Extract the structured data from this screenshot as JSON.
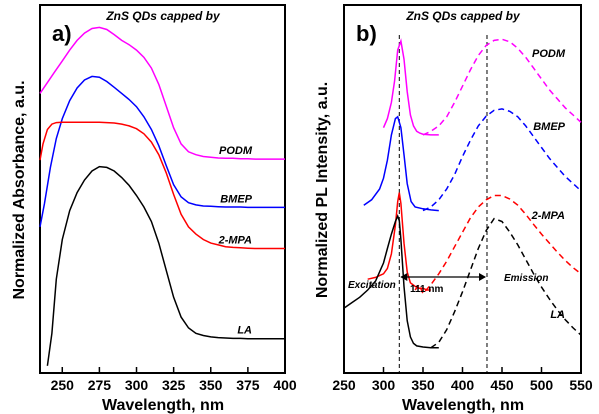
{
  "chart_data": [
    {
      "type": "line",
      "panel_label": "a)",
      "title": "ZnS QDs capped by",
      "xlabel": "Wavelength, nm",
      "ylabel": "Normalized Absorbance, a.u.",
      "xlim": [
        235,
        400
      ],
      "xticks": [
        250,
        275,
        300,
        325,
        350,
        375,
        400
      ],
      "y_ticks_shown": false,
      "series": [
        {
          "name": "PODM",
          "color": "#ff00ff",
          "x": [
            235,
            240,
            245,
            250,
            255,
            260,
            265,
            270,
            275,
            280,
            285,
            290,
            295,
            300,
            305,
            310,
            315,
            320,
            325,
            330,
            335,
            340,
            345,
            350,
            355,
            360,
            365,
            370,
            375,
            380,
            385,
            390,
            395,
            400
          ],
          "y": [
            7.25,
            7.55,
            7.85,
            8.15,
            8.45,
            8.72,
            8.92,
            9.05,
            9.08,
            9.02,
            8.88,
            8.72,
            8.6,
            8.45,
            8.25,
            7.95,
            7.5,
            6.9,
            6.3,
            5.85,
            5.63,
            5.55,
            5.5,
            5.48,
            5.46,
            5.45,
            5.45,
            5.44,
            5.44,
            5.43,
            5.43,
            5.43,
            5.43,
            5.43
          ]
        },
        {
          "name": "BMEP",
          "color": "#0000ff",
          "x": [
            235,
            238,
            242,
            246,
            250,
            255,
            260,
            265,
            270,
            275,
            280,
            285,
            290,
            295,
            300,
            305,
            310,
            315,
            320,
            325,
            330,
            335,
            340,
            345,
            350,
            355,
            360,
            365,
            370,
            375,
            380,
            385,
            390,
            395,
            400
          ],
          "y": [
            3.55,
            4.2,
            5.2,
            6.0,
            6.55,
            7.05,
            7.4,
            7.62,
            7.72,
            7.7,
            7.58,
            7.42,
            7.25,
            7.08,
            6.88,
            6.6,
            6.25,
            5.8,
            5.25,
            4.72,
            4.38,
            4.22,
            4.16,
            4.13,
            4.12,
            4.11,
            4.1,
            4.1,
            4.1,
            4.09,
            4.09,
            4.09,
            4.09,
            4.09,
            4.09
          ]
        },
        {
          "name": "2-MPA",
          "color": "#ff0000",
          "x": [
            235,
            237,
            240,
            243,
            246,
            250,
            255,
            260,
            265,
            270,
            275,
            280,
            285,
            290,
            295,
            300,
            305,
            310,
            315,
            320,
            325,
            330,
            335,
            340,
            345,
            350,
            355,
            360,
            365,
            370,
            375,
            380,
            385,
            390,
            395,
            400
          ],
          "y": [
            5.4,
            5.85,
            6.25,
            6.4,
            6.44,
            6.45,
            6.45,
            6.45,
            6.45,
            6.45,
            6.45,
            6.44,
            6.43,
            6.4,
            6.35,
            6.27,
            6.13,
            5.9,
            5.55,
            5.05,
            4.45,
            3.9,
            3.55,
            3.35,
            3.2,
            3.1,
            3.05,
            3.0,
            2.98,
            2.97,
            2.96,
            2.95,
            2.95,
            2.95,
            2.95,
            2.95
          ]
        },
        {
          "name": "LA",
          "color": "#000000",
          "x": [
            240,
            243,
            246,
            250,
            255,
            260,
            265,
            270,
            275,
            280,
            285,
            290,
            295,
            300,
            305,
            310,
            315,
            320,
            325,
            330,
            335,
            340,
            345,
            350,
            355,
            360,
            365,
            370,
            375,
            380,
            385,
            390,
            395,
            400
          ],
          "y": [
            -0.3,
            0.6,
            2.1,
            3.2,
            4.0,
            4.5,
            4.85,
            5.1,
            5.22,
            5.2,
            5.1,
            4.92,
            4.7,
            4.42,
            4.1,
            3.7,
            3.1,
            2.35,
            1.6,
            1.05,
            0.75,
            0.6,
            0.54,
            0.5,
            0.48,
            0.47,
            0.46,
            0.46,
            0.45,
            0.45,
            0.45,
            0.45,
            0.45,
            0.45
          ]
        }
      ]
    },
    {
      "type": "line",
      "panel_label": "b)",
      "title": "ZnS QDs capped by",
      "xlabel": "Wavelength, nm",
      "ylabel": "Normalized PL Intensity, a.u.",
      "xlim": [
        250,
        550
      ],
      "xticks": [
        250,
        300,
        350,
        400,
        450,
        500,
        550
      ],
      "y_ticks_shown": false,
      "series_names": [
        "PODM",
        "BMEP",
        "2-MPA",
        "LA"
      ],
      "excitation_series": [
        {
          "name": "PODM",
          "color": "#ff00ff",
          "x": [
            300,
            305,
            310,
            314,
            318,
            322,
            326,
            330,
            334,
            338,
            342,
            346,
            350,
            360,
            370
          ],
          "y": [
            6.3,
            6.55,
            7.0,
            7.6,
            8.45,
            8.7,
            8.2,
            7.3,
            6.65,
            6.35,
            6.2,
            6.15,
            6.12,
            6.1,
            6.1
          ]
        },
        {
          "name": "BMEP",
          "color": "#0000ff",
          "x": [
            275,
            285,
            295,
            300,
            305,
            310,
            315,
            318,
            322,
            326,
            330,
            335,
            340,
            350,
            360,
            370
          ],
          "y": [
            4.15,
            4.3,
            4.6,
            4.9,
            5.4,
            6.1,
            6.55,
            6.6,
            6.3,
            5.55,
            4.75,
            4.25,
            4.1,
            4.05,
            4.02,
            4.0
          ]
        },
        {
          "name": "2-MPA",
          "color": "#ff0000",
          "x": [
            280,
            290,
            300,
            305,
            310,
            315,
            318,
            320,
            322,
            326,
            330,
            334,
            340,
            345,
            350,
            355,
            360
          ],
          "y": [
            2.1,
            2.15,
            2.25,
            2.4,
            2.8,
            3.6,
            4.25,
            4.5,
            4.2,
            3.1,
            2.3,
            2.0,
            1.9,
            1.85,
            1.85,
            1.8,
            1.8
          ]
        },
        {
          "name": "LA",
          "color": "#000000",
          "x": [
            250,
            260,
            270,
            280,
            290,
            300,
            305,
            310,
            315,
            318,
            320,
            322,
            326,
            330,
            334,
            338,
            342,
            350,
            360,
            370
          ],
          "y": [
            1.3,
            1.45,
            1.6,
            1.8,
            2.05,
            2.55,
            2.95,
            3.35,
            3.7,
            3.85,
            3.72,
            3.2,
            1.9,
            0.95,
            0.5,
            0.32,
            0.25,
            0.22,
            0.2,
            0.2
          ]
        }
      ],
      "emission_series": [
        {
          "name": "PODM",
          "color": "#ff00ff",
          "x": [
            350,
            360,
            370,
            380,
            390,
            400,
            410,
            420,
            430,
            440,
            450,
            460,
            470,
            480,
            490,
            500,
            510,
            520,
            530,
            540,
            550
          ],
          "y": [
            6.1,
            6.2,
            6.35,
            6.6,
            7.0,
            7.45,
            7.9,
            8.3,
            8.58,
            8.72,
            8.75,
            8.68,
            8.5,
            8.25,
            7.95,
            7.65,
            7.35,
            7.1,
            6.85,
            6.65,
            6.45
          ]
        },
        {
          "name": "BMEP",
          "color": "#0000ff",
          "x": [
            350,
            360,
            370,
            380,
            390,
            400,
            410,
            420,
            430,
            440,
            450,
            460,
            470,
            480,
            490,
            500,
            510,
            520,
            530,
            540,
            550
          ],
          "y": [
            4.0,
            4.1,
            4.3,
            4.6,
            5.0,
            5.5,
            5.95,
            6.35,
            6.62,
            6.78,
            6.82,
            6.75,
            6.6,
            6.35,
            6.05,
            5.75,
            5.45,
            5.2,
            4.95,
            4.75,
            4.55
          ]
        },
        {
          "name": "2-MPA",
          "color": "#ff0000",
          "x": [
            340,
            345,
            350,
            360,
            370,
            380,
            390,
            400,
            410,
            420,
            430,
            440,
            450,
            460,
            470,
            480,
            490,
            500,
            510,
            520,
            530,
            540,
            550
          ],
          "y": [
            1.8,
            1.95,
            1.7,
            1.95,
            2.25,
            2.6,
            3.0,
            3.4,
            3.8,
            4.1,
            4.3,
            4.42,
            4.42,
            4.32,
            4.15,
            3.9,
            3.62,
            3.35,
            3.1,
            2.85,
            2.62,
            2.42,
            2.25
          ]
        },
        {
          "name": "LA",
          "color": "#000000",
          "x": [
            360,
            370,
            380,
            390,
            400,
            410,
            420,
            430,
            440,
            450,
            460,
            470,
            480,
            490,
            500,
            510,
            520,
            530,
            540,
            550
          ],
          "y": [
            0.2,
            0.35,
            0.7,
            1.2,
            1.75,
            2.35,
            2.95,
            3.45,
            3.78,
            3.7,
            3.4,
            3.05,
            2.65,
            2.25,
            1.88,
            1.55,
            1.25,
            0.98,
            0.75,
            0.55
          ]
        }
      ],
      "reference_lines_x": [
        320,
        431
      ],
      "annotations": {
        "excitation": "Excitation",
        "emission": "Emission",
        "shift": "111 nm"
      }
    }
  ]
}
